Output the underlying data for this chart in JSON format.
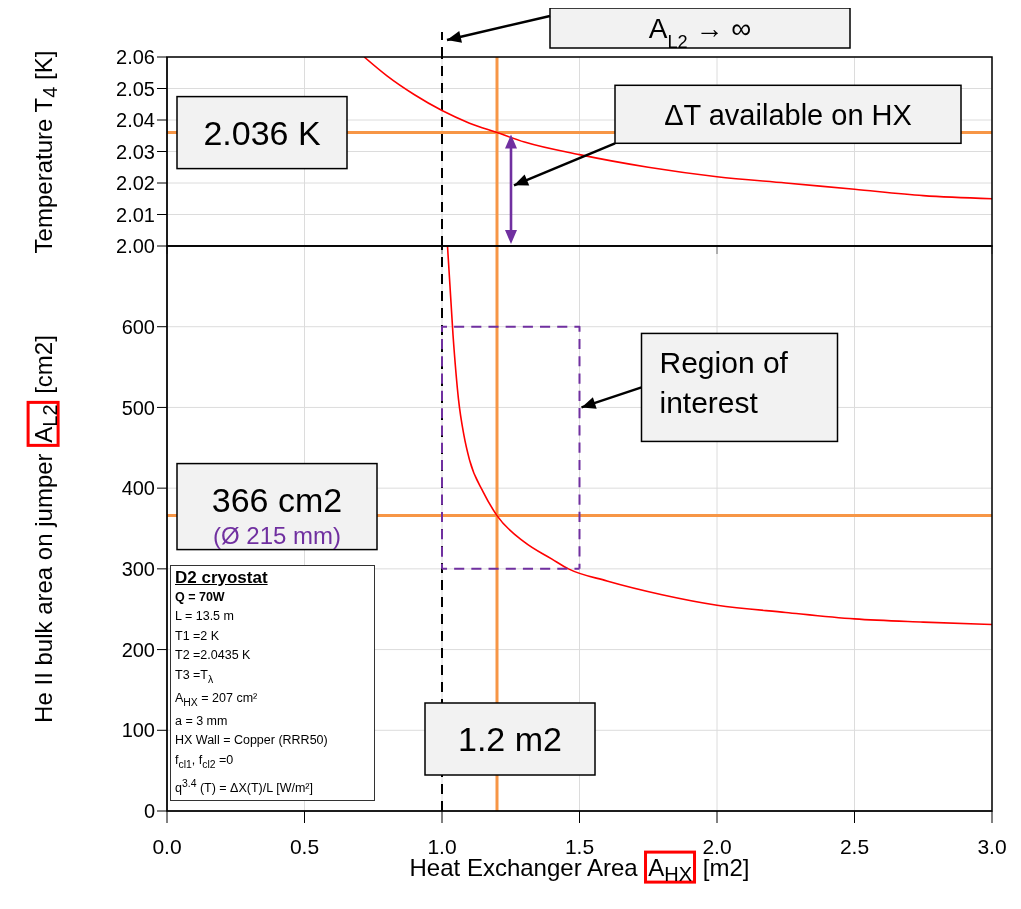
{
  "chart_data": [
    {
      "type": "line",
      "ylabel": "Temperature T$_{4}$ [K]",
      "xlim": [
        0,
        3
      ],
      "xticks": [
        0,
        0.5,
        1,
        1.5,
        2,
        2.5,
        3
      ],
      "ylim": [
        2.0,
        2.06
      ],
      "yticks": [
        {
          "value": 2.0,
          "label": "2.00"
        },
        {
          "value": 2.01,
          "label": "2.01"
        },
        {
          "value": 2.02,
          "label": "2.02"
        },
        {
          "value": 2.03,
          "label": "2.03"
        },
        {
          "value": 2.04,
          "label": "2.04"
        },
        {
          "value": 2.05,
          "label": "2.05"
        },
        {
          "value": 2.06,
          "label": "2.06"
        }
      ],
      "tick_labels": "y",
      "grid": true,
      "series": [
        {
          "color": "#ff0000",
          "x": [
            0.717,
            0.8,
            0.9,
            1.0,
            1.1,
            1.2,
            1.3,
            1.5,
            1.75,
            2.0,
            2.25,
            2.5,
            2.75,
            3.0
          ],
          "values": [
            2.06,
            2.054,
            2.048,
            2.043,
            2.039,
            2.036,
            2.033,
            2.029,
            2.025,
            2.022,
            2.02,
            2.018,
            2.016,
            2.015
          ]
        }
      ],
      "ref_lines": [
        {
          "axis": "x",
          "value": 1.0,
          "label": "A$_{L2}$ → ∞",
          "color": "#000000",
          "line_style": "dashed"
        },
        {
          "axis": "x",
          "value": 1.2,
          "color": "#f79646"
        },
        {
          "axis": "y",
          "value": 2.036,
          "label": "2.036 K",
          "color": "#f79646"
        }
      ],
      "annotations": [
        "ΔT available on HX"
      ]
    },
    {
      "type": "line",
      "xlabel": "Heat Exchanger Area A$_{HX}$ [m2]",
      "ylabel": "He II bulk area on jumper A$_{L2}$ [cm2]",
      "xlim": [
        0,
        3
      ],
      "xticks": [
        {
          "value": 0,
          "label": "0.0"
        },
        {
          "value": 0.5,
          "label": "0.5"
        },
        {
          "value": 1,
          "label": "1.0"
        },
        {
          "value": 1.5,
          "label": "1.5"
        },
        {
          "value": 2,
          "label": "2.0"
        },
        {
          "value": 2.5,
          "label": "2.5"
        },
        {
          "value": 3,
          "label": "3.0"
        }
      ],
      "ylim": [
        0,
        700
      ],
      "yticks": [
        0,
        100,
        200,
        300,
        400,
        500,
        600
      ],
      "grid": true,
      "series": [
        {
          "color": "#ff0000",
          "x": [
            1.02,
            1.04,
            1.06,
            1.08,
            1.1,
            1.15,
            1.2,
            1.3,
            1.4,
            1.46,
            1.6,
            1.8,
            2.0,
            2.25,
            2.5,
            2.75,
            3.0
          ],
          "values": [
            700,
            590,
            510,
            465,
            435,
            395,
            366,
            333,
            312,
            300,
            285,
            268,
            255,
            246,
            238,
            234,
            231
          ]
        },
        {
          "color": "#7030a0",
          "line_style": "dashed",
          "x": [
            1.0,
            1.0,
            1.5,
            1.5
          ],
          "values": [
            300,
            600,
            600,
            300
          ]
        },
        {
          "color": "#7030a0",
          "line_style": "dashed",
          "x": [
            1.0,
            1.5
          ],
          "values": [
            300,
            300
          ]
        }
      ],
      "ref_lines": [
        {
          "axis": "x",
          "value": 1.0,
          "color": "#000000",
          "line_style": "dashed"
        },
        {
          "axis": "x",
          "value": 1.2,
          "label": "1.2 m2",
          "color": "#f79646"
        },
        {
          "axis": "y",
          "value": 366,
          "label": "366 cm2",
          "color": "#f79646"
        }
      ],
      "annotations": [
        {
          "text": "(Ø 215 mm)",
          "y": 366
        },
        {
          "text": "Region of interest",
          "x": 1.5,
          "y": 500
        },
        "D2 cryostat",
        "Q = 70W",
        "L = 13.5 m",
        "T1 =2 K",
        "T2 =2.0435 K",
        "T3 =T$_{λ}$",
        "A$_{HX}$ = 207 cm²",
        "a = 3 mm",
        "HX Wall = Copper (RRR50)",
        "f$_{cl1}$, f$_{cl2}$ =0",
        "q$^{3.4}$ (T) = ΔX(T)/L [W/m²]"
      ]
    }
  ]
}
